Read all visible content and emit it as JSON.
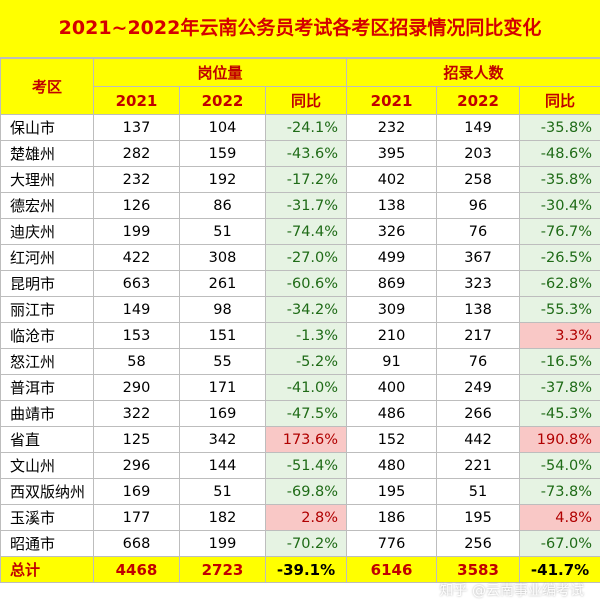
{
  "title": "2021~2022年云南公务员考试各考区招录情况同比变化",
  "headers": {
    "region": "考区",
    "group_positions": "岗位量",
    "group_hires": "招录人数",
    "year_2021": "2021",
    "year_2022": "2022",
    "yoy": "同比"
  },
  "rows": [
    {
      "region": "保山市",
      "pos2021": "137",
      "pos2022": "104",
      "posYoy": "-24.1%",
      "hire2021": "232",
      "hire2022": "149",
      "hireYoy": "-35.8%"
    },
    {
      "region": "楚雄州",
      "pos2021": "282",
      "pos2022": "159",
      "posYoy": "-43.6%",
      "hire2021": "395",
      "hire2022": "203",
      "hireYoy": "-48.6%"
    },
    {
      "region": "大理州",
      "pos2021": "232",
      "pos2022": "192",
      "posYoy": "-17.2%",
      "hire2021": "402",
      "hire2022": "258",
      "hireYoy": "-35.8%"
    },
    {
      "region": "德宏州",
      "pos2021": "126",
      "pos2022": "86",
      "posYoy": "-31.7%",
      "hire2021": "138",
      "hire2022": "96",
      "hireYoy": "-30.4%"
    },
    {
      "region": "迪庆州",
      "pos2021": "199",
      "pos2022": "51",
      "posYoy": "-74.4%",
      "hire2021": "326",
      "hire2022": "76",
      "hireYoy": "-76.7%"
    },
    {
      "region": "红河州",
      "pos2021": "422",
      "pos2022": "308",
      "posYoy": "-27.0%",
      "hire2021": "499",
      "hire2022": "367",
      "hireYoy": "-26.5%"
    },
    {
      "region": "昆明市",
      "pos2021": "663",
      "pos2022": "261",
      "posYoy": "-60.6%",
      "hire2021": "869",
      "hire2022": "323",
      "hireYoy": "-62.8%"
    },
    {
      "region": "丽江市",
      "pos2021": "149",
      "pos2022": "98",
      "posYoy": "-34.2%",
      "hire2021": "309",
      "hire2022": "138",
      "hireYoy": "-55.3%"
    },
    {
      "region": "临沧市",
      "pos2021": "153",
      "pos2022": "151",
      "posYoy": "-1.3%",
      "hire2021": "210",
      "hire2022": "217",
      "hireYoy": "3.3%"
    },
    {
      "region": "怒江州",
      "pos2021": "58",
      "pos2022": "55",
      "posYoy": "-5.2%",
      "hire2021": "91",
      "hire2022": "76",
      "hireYoy": "-16.5%"
    },
    {
      "region": "普洱市",
      "pos2021": "290",
      "pos2022": "171",
      "posYoy": "-41.0%",
      "hire2021": "400",
      "hire2022": "249",
      "hireYoy": "-37.8%"
    },
    {
      "region": "曲靖市",
      "pos2021": "322",
      "pos2022": "169",
      "posYoy": "-47.5%",
      "hire2021": "486",
      "hire2022": "266",
      "hireYoy": "-45.3%"
    },
    {
      "region": "省直",
      "pos2021": "125",
      "pos2022": "342",
      "posYoy": "173.6%",
      "hire2021": "152",
      "hire2022": "442",
      "hireYoy": "190.8%"
    },
    {
      "region": "文山州",
      "pos2021": "296",
      "pos2022": "144",
      "posYoy": "-51.4%",
      "hire2021": "480",
      "hire2022": "221",
      "hireYoy": "-54.0%"
    },
    {
      "region": "西双版纳州",
      "pos2021": "169",
      "pos2022": "51",
      "posYoy": "-69.8%",
      "hire2021": "195",
      "hire2022": "51",
      "hireYoy": "-73.8%"
    },
    {
      "region": "玉溪市",
      "pos2021": "177",
      "pos2022": "182",
      "posYoy": "2.8%",
      "hire2021": "186",
      "hire2022": "195",
      "hireYoy": "4.8%"
    },
    {
      "region": "昭通市",
      "pos2021": "668",
      "pos2022": "199",
      "posYoy": "-70.2%",
      "hire2021": "776",
      "hire2022": "256",
      "hireYoy": "-67.0%"
    }
  ],
  "total": {
    "region": "总计",
    "pos2021": "4468",
    "pos2022": "2723",
    "posYoy": "-39.1%",
    "hire2021": "6146",
    "hire2022": "3583",
    "hireYoy": "-41.7%"
  },
  "watermark": "知乎 @云南事业编考试",
  "colors": {
    "header_bg": "#ffff00",
    "header_text": "#c00000",
    "title_text": "#d40000",
    "negative_bg": "#e6f3e3",
    "negative_text": "#1f6b17",
    "positive_bg": "#f9c8c6",
    "positive_text": "#b00000"
  }
}
